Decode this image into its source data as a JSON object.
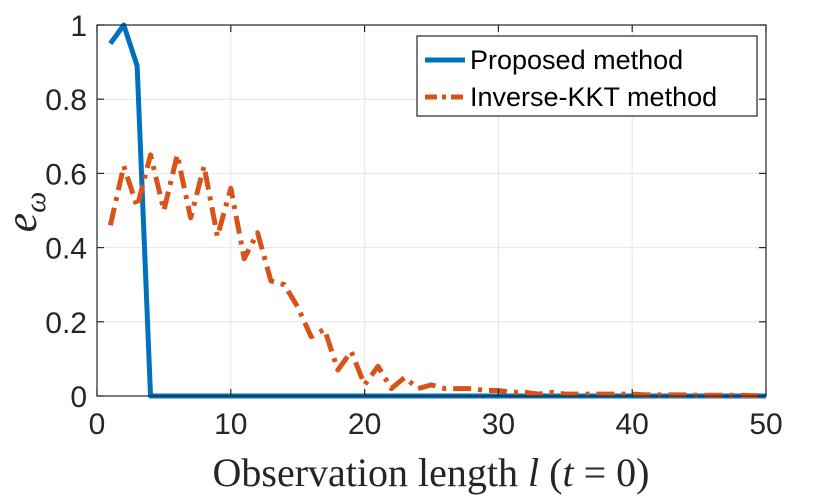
{
  "chart_data": {
    "type": "line",
    "xlabel": {
      "prefix": "Observation length ",
      "var": "l",
      "suffix": " (",
      "var2": "t",
      "eq": " = 0)"
    },
    "ylabel": {
      "base": "e",
      "sub": "ω"
    },
    "xlim": [
      0,
      50
    ],
    "ylim": [
      0,
      1
    ],
    "xticks": [
      0,
      10,
      20,
      30,
      40,
      50
    ],
    "xtick_labels": [
      "0",
      "10",
      "20",
      "30",
      "40",
      "50"
    ],
    "yticks": [
      0,
      0.2,
      0.4,
      0.6,
      0.8,
      1
    ],
    "ytick_labels": [
      "0",
      "0.2",
      "0.4",
      "0.6",
      "0.8",
      "1"
    ],
    "grid": true,
    "legend_position": "top-right",
    "series": [
      {
        "name": "Proposed method",
        "color": "#0072BD",
        "style": "solid",
        "x": [
          1,
          2,
          3,
          4,
          5,
          6,
          7,
          8,
          9,
          10,
          11,
          12,
          13,
          14,
          15,
          16,
          17,
          18,
          19,
          20,
          21,
          22,
          23,
          24,
          25,
          26,
          27,
          28,
          29,
          30,
          31,
          32,
          33,
          34,
          35,
          36,
          37,
          38,
          39,
          40,
          41,
          42,
          43,
          44,
          45,
          46,
          47,
          48,
          49,
          50
        ],
        "y": [
          0.95,
          1.0,
          0.89,
          0,
          0,
          0,
          0,
          0,
          0,
          0,
          0,
          0,
          0,
          0,
          0,
          0,
          0,
          0,
          0,
          0,
          0,
          0,
          0,
          0,
          0,
          0,
          0,
          0,
          0,
          0,
          0,
          0,
          0,
          0,
          0,
          0,
          0,
          0,
          0,
          0,
          0,
          0,
          0,
          0,
          0,
          0,
          0,
          0,
          0,
          0
        ]
      },
      {
        "name": "Inverse-KKT method",
        "color": "#D95319",
        "style": "dashdot",
        "x": [
          1,
          2,
          3,
          4,
          5,
          6,
          7,
          8,
          9,
          10,
          11,
          12,
          13,
          14,
          15,
          16,
          17,
          18,
          19,
          20,
          21,
          22,
          23,
          24,
          25,
          26,
          27,
          28,
          29,
          30,
          31,
          32,
          33,
          34,
          35,
          36,
          37,
          38,
          39,
          40,
          41,
          42,
          43,
          44,
          45,
          46,
          47,
          48,
          49,
          50
        ],
        "y": [
          0.46,
          0.62,
          0.51,
          0.65,
          0.5,
          0.65,
          0.48,
          0.62,
          0.43,
          0.56,
          0.37,
          0.44,
          0.31,
          0.3,
          0.24,
          0.16,
          0.18,
          0.07,
          0.12,
          0.03,
          0.08,
          0.02,
          0.05,
          0.02,
          0.03,
          0.02,
          0.02,
          0.02,
          0.015,
          0.015,
          0.01,
          0.01,
          0.005,
          0.01,
          0.005,
          0.005,
          0.005,
          0.005,
          0.005,
          0.005,
          0.003,
          0.003,
          0.003,
          0.003,
          0.002,
          0.002,
          0.002,
          0.002,
          0.001,
          0.001
        ]
      }
    ]
  }
}
